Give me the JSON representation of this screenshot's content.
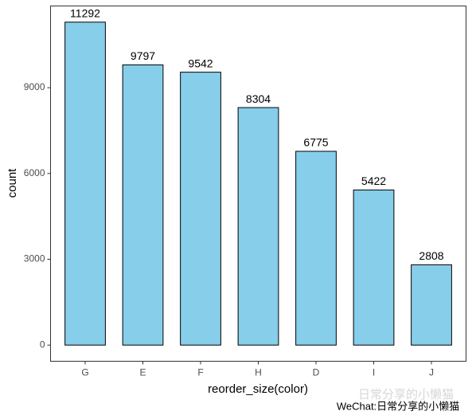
{
  "chart_data": {
    "type": "bar",
    "categories": [
      "G",
      "E",
      "F",
      "H",
      "D",
      "I",
      "J"
    ],
    "values": [
      11292,
      9797,
      9542,
      8304,
      6775,
      5422,
      2808
    ],
    "color": "#87ceeb",
    "ylim": [
      -565,
      11857
    ],
    "yticks": [
      0,
      3000,
      6000,
      9000
    ],
    "xlabel": "reorder_size(color)",
    "ylabel": "count",
    "grid": false,
    "watermark_faded": "日常分享的小懒猫",
    "watermark": "WeChat:日常分享的小懒猫"
  }
}
